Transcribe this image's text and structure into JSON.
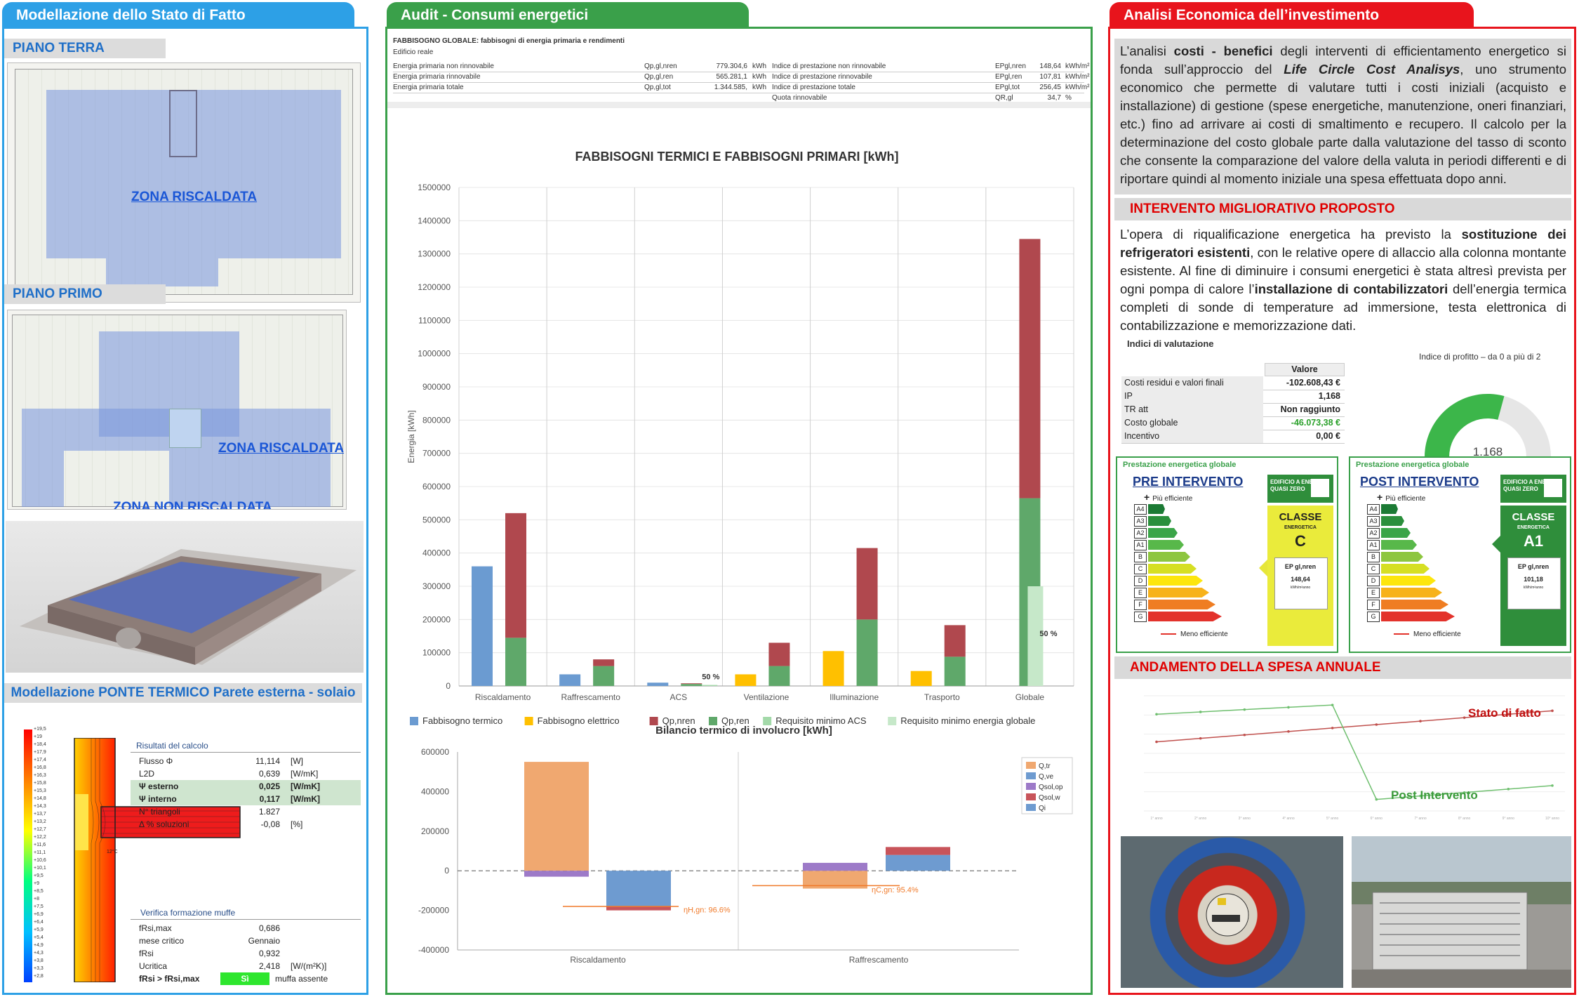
{
  "left": {
    "tab_title": "Modellazione dello Stato di Fatto",
    "piano_terra": "PIANO TERRA",
    "piano_primo": "PIANO PRIMO",
    "zona_riscaldata": "ZONA RISCALDATA",
    "zona_riscaldata_2": "ZONA RISCALDATA",
    "zona_non_riscaldata": "ZONA NON RISCALDATA",
    "ponte_title": "Modellazione PONTE TERMICO Parete esterna - solaio",
    "scale": [
      "+19,5",
      "+19",
      "+18,4",
      "+17,9",
      "+17,4",
      "+16,8",
      "+16,3",
      "+15,8",
      "+15,3",
      "+14,8",
      "+14,3",
      "+13,7",
      "+13,2",
      "+12,7",
      "+12,2",
      "+11,6",
      "+11,1",
      "+10,6",
      "+10,1",
      "+9,5",
      "+9",
      "+8,5",
      "+8",
      "+7,5",
      "+6,9",
      "+6,4",
      "+5,9",
      "+5,4",
      "+4,9",
      "+4,3",
      "+3,8",
      "+3,3",
      "+2,8"
    ],
    "risultati_title": "Risultati del calcolo",
    "risultati": [
      {
        "k": "Flusso Φ",
        "v": "11,114",
        "u": "[W]",
        "hl": false
      },
      {
        "k": "L2D",
        "v": "0,639",
        "u": "[W/mK]",
        "hl": false
      },
      {
        "k": "Ψ esterno",
        "v": "0,025",
        "u": "[W/mK]",
        "hl": true
      },
      {
        "k": "Ψ interno",
        "v": "0,117",
        "u": "[W/mK]",
        "hl": true
      },
      {
        "k": "N° triangoli",
        "v": "1.827",
        "u": "",
        "hl": false
      },
      {
        "k": "Δ % soluzioni",
        "v": "-0,08",
        "u": "[%]",
        "hl": false
      }
    ],
    "muffe_title": "Verifica formazione muffe",
    "muffe": [
      {
        "k": "fRsi,max",
        "v": "0,686",
        "u": ""
      },
      {
        "k": "mese critico",
        "v": "Gennaio",
        "u": ""
      },
      {
        "k": "fRsi",
        "v": "0,932",
        "u": ""
      },
      {
        "k": "Ucritica",
        "v": "2,418",
        "u": "[W/(m²K)]"
      },
      {
        "k": "fRsi > fRsi,max",
        "v": "Sì",
        "u": "muffa assente"
      }
    ],
    "iso_label": "12°C"
  },
  "center": {
    "tab_title": "Audit - Consumi energetici",
    "tbl_title": "FABBISOGNO GLOBALE: fabbisogni di energia primaria e rendimenti",
    "tbl_sub": "Edificio reale",
    "tbl_rows": [
      [
        "Energia primaria non rinnovabile",
        "Qp,gl,nren",
        "779.304,6",
        "kWh",
        "Indice di prestazione non rinnovabile",
        "EPgl,nren",
        "148,64",
        "kWh/m²"
      ],
      [
        "Energia primaria rinnovabile",
        "Qp,gl,ren",
        "565.281,1",
        "kWh",
        "Indice di prestazione rinnovabile",
        "EPgl,ren",
        "107,81",
        "kWh/m²"
      ],
      [
        "Energia primaria totale",
        "Qp,gl,tot",
        "1.344.585,",
        "kWh",
        "Indice di prestazione totale",
        "EPgl,tot",
        "256,45",
        "kWh/m²"
      ],
      [
        "",
        "",
        "",
        "",
        "Quota rinnovabile",
        "QR,gl",
        "34,7",
        "%"
      ]
    ]
  },
  "chart_data": [
    {
      "type": "bar",
      "title": "FABBISOGNI TERMICI E FABBISOGNI PRIMARI [kWh]",
      "ylabel": "Energia [kWh]",
      "ylim": [
        0,
        1500000
      ],
      "categories": [
        "Riscaldamento",
        "Raffrescamento",
        "ACS",
        "Ventilazione",
        "Illuminazione",
        "Trasporto",
        "Globale"
      ],
      "series": [
        {
          "name": "Fabbisogno termico",
          "color": "#6b9bd1",
          "values": [
            360000,
            35000,
            10000,
            null,
            null,
            null,
            null
          ]
        },
        {
          "name": "Fabbisogno elettrico",
          "color": "#ffc000",
          "values": [
            null,
            null,
            null,
            35000,
            105000,
            45000,
            null
          ]
        },
        {
          "name": "Qp,nren",
          "color": "#b0484e",
          "values": [
            375000,
            20000,
            2000,
            70000,
            215000,
            95000,
            780000
          ]
        },
        {
          "name": "Qp,ren",
          "color": "#5fa86a",
          "values": [
            145000,
            60000,
            6000,
            60000,
            200000,
            88000,
            565000
          ]
        },
        {
          "name": "Requisito minimo ACS",
          "color": "#a3d9a9",
          "values": [
            null,
            null,
            3000,
            null,
            null,
            null,
            null
          ]
        },
        {
          "name": "Requisito minimo energia globale",
          "color": "#c6e8c9",
          "values": [
            null,
            null,
            null,
            null,
            null,
            null,
            300000
          ]
        }
      ],
      "annotations": [
        {
          "category": "ACS",
          "text": "50 %"
        },
        {
          "category": "Globale",
          "text": "50 %"
        }
      ],
      "legend_position": "bottom"
    },
    {
      "type": "bar",
      "title": "Bilancio termico di involucro [kWh]",
      "ylim": [
        -400000,
        600000
      ],
      "categories": [
        "Riscaldamento",
        "Raffrescamento"
      ],
      "series": [
        {
          "name": "Q,tr",
          "color": "#f0a870",
          "values": [
            550000,
            -90000
          ]
        },
        {
          "name": "Q,ve",
          "color": "#6e9bd0",
          "values": [
            -180000,
            0
          ]
        },
        {
          "name": "Qsol,op",
          "color": "#9d7ac8",
          "values": [
            -30000,
            40000
          ]
        },
        {
          "name": "Qsol,w",
          "color": "#c8545a",
          "values": [
            -20000,
            40000
          ]
        },
        {
          "name": "Qi",
          "color": "#6e9bd0",
          "values": [
            0,
            80000
          ]
        }
      ],
      "annotations": [
        {
          "text": "ηH,gn: 96.6%"
        },
        {
          "text": "ηC,gn: 95.4%"
        }
      ],
      "legend_position": "right"
    },
    {
      "type": "line",
      "title": "ANDAMENTO DELLA SPESA ANNUALE",
      "x": [
        "1° anno",
        "2° anno",
        "3° anno",
        "4° anno",
        "5° anno",
        "6° anno",
        "7° anno",
        "8° anno",
        "9° anno",
        "10° anno"
      ],
      "series": [
        {
          "name": "Stato di fatto",
          "color": "#c0504d",
          "values": [
            60,
            63,
            66,
            69,
            72,
            75,
            78,
            81,
            84,
            87
          ]
        },
        {
          "name": "Post Intervento",
          "color": "#6fbf6f",
          "values": [
            84,
            86,
            88,
            90,
            92,
            10,
            13,
            16,
            19,
            22
          ]
        }
      ]
    }
  ],
  "right": {
    "tab_title": "Analisi Economica  dell’investimento",
    "intro_pre": "L’analisi ",
    "intro_b1": "costi - benefici",
    "intro_mid": " degli interventi di efficientamento energetico si fonda sull’approccio del ",
    "intro_bi": "Life Circle Cost Analisys",
    "intro_post": ", uno strumento economico che permette di valutare tutti i costi iniziali (acquisto e installazione) di gestione (spese energetiche, manutenzione, oneri finanziari, etc.) fino ad arrivare ai costi di smaltimento e recupero. Il calcolo per la determinazione del costo globale parte dalla valutazione del tasso di sconto che consente la comparazione del valore della valuta in periodi differenti e di riportare quindi al momento iniziale una spesa effettuata dopo anni.",
    "intervento_title": "INTERVENTO MIGLIORATIVO PROPOSTO",
    "int_p1": "L’opera di riqualificazione energetica ha previsto la ",
    "int_b1": "sostituzione dei refrigeratori esistenti",
    "int_p2": ", con le relative opere di allaccio alla colonna montante esistente. Al fine di diminuire i consumi energetici è stata altresì prevista per ogni pompa di calore l’",
    "int_b2": "installazione di contabilizzatori",
    "int_p3": " dell’energia termica completi di sonde di temperature ad immersione, testa elettronica di contabilizzazione e memorizzazione dati.",
    "indici_title": "Indici di valutazione",
    "valore_hdr": "Valore",
    "indici": [
      {
        "k": "Costi residui e valori finali",
        "v": "-102.608,43 €",
        "green": false
      },
      {
        "k": "IP",
        "v": "1,168",
        "green": false
      },
      {
        "k": "TR att",
        "v": "Non raggiunto",
        "green": false
      },
      {
        "k": "Costo globale",
        "v": "-46.073,38 €",
        "green": true
      },
      {
        "k": "Incentivo",
        "v": "0,00 €",
        "green": false
      }
    ],
    "gauge_title": "Indice di profitto – da 0 a più di 2",
    "gauge_value": 1.168,
    "gauge_value_text": "1.168",
    "gauge_min": "0",
    "gauge_max": "2",
    "ep_header": "Prestazione energetica globale",
    "pre_title": "PRE INTERVENTO",
    "post_title": "POST INTERVENTO",
    "piu_eff": "Più efficiente",
    "meno_eff": "Meno efficiente",
    "nzeb": "EDIFICIO A ENERGIA QUASI ZERO",
    "classe": "CLASSE",
    "energetica": "ENERGETICA",
    "classes": [
      "A4",
      "A3",
      "A2",
      "A1",
      "B",
      "C",
      "D",
      "E",
      "F",
      "G"
    ],
    "pre_class": "C",
    "post_class": "A1",
    "ep_label": "EP gl,nren",
    "pre_ep": "148,64",
    "post_ep": "101,18",
    "ep_unit": "kWh/m²anno",
    "andamento_title": "ANDAMENTO DELLA SPESA ANNUALE",
    "stato_label": "Stato di fatto",
    "post_label": "Post Intervento"
  }
}
